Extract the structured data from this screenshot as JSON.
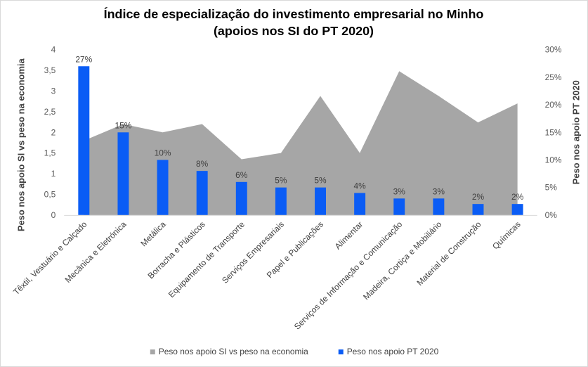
{
  "chart_data": {
    "type": "bar",
    "title_line1": "Índice de especialização do investimento empresarial no Minho",
    "title_line2": "(apoios nos SI do PT 2020)",
    "ylabel_left": "Peso nos apoio SI vs peso na economia",
    "ylabel_right": "Peso nos apoio PT 2020",
    "ylim_left": [
      0,
      4
    ],
    "ylim_right": [
      0,
      0.3
    ],
    "left_ticks": [
      "0",
      "0,5",
      "1",
      "1,5",
      "2",
      "2,5",
      "3",
      "3,5",
      "4"
    ],
    "right_ticks": [
      "0%",
      "5%",
      "10%",
      "15%",
      "20%",
      "25%",
      "30%"
    ],
    "categories": [
      "Têxtil, Vestuário e Calçado",
      "Mecânica e Eletrónica",
      "Metálica",
      "Borracha e Plásticos",
      "Equipamento de Transporte",
      "Serviços Empresariais",
      "Papel e Publicações",
      "Alimentar",
      "Serviços de Informação e Comunicação",
      "Madeira, Cortiça e Mobiliário",
      "Material de Construção",
      "Químicas"
    ],
    "series": [
      {
        "name": "Peso nos apoio SI vs peso na economia",
        "chart_type": "area",
        "axis": "left",
        "color": "#a6a6a6",
        "values": [
          1.8,
          2.2,
          2.0,
          2.2,
          1.35,
          1.5,
          2.88,
          1.5,
          3.48,
          2.88,
          2.24,
          2.7
        ]
      },
      {
        "name": "Peso nos apoio PT 2020",
        "chart_type": "bar",
        "axis": "right",
        "color": "#0a5cf5",
        "values": [
          0.27,
          0.15,
          0.1,
          0.08,
          0.06,
          0.05,
          0.05,
          0.04,
          0.03,
          0.03,
          0.02,
          0.02
        ],
        "data_labels": [
          "27%",
          "15%",
          "10%",
          "8%",
          "6%",
          "5%",
          "5%",
          "4%",
          "3%",
          "3%",
          "2%",
          "2%"
        ]
      }
    ],
    "legend_position": "bottom",
    "grid": false
  }
}
